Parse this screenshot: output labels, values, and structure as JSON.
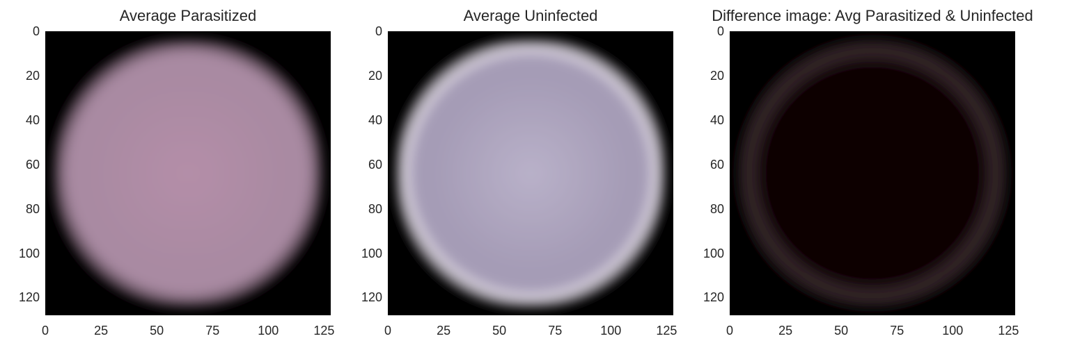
{
  "chart_data": [
    {
      "type": "heatmap",
      "title": "Average Parasitized",
      "xlabel": "",
      "ylabel": "",
      "x_ticks": [
        0,
        25,
        50,
        75,
        100,
        125
      ],
      "y_ticks": [
        0,
        20,
        40,
        60,
        80,
        100,
        120
      ],
      "xlim": [
        0,
        128
      ],
      "ylim": [
        128,
        0
      ],
      "image_description_values": {
        "center_rgb": "#b48ea8",
        "background_rgb": "#000000"
      },
      "grid": false
    },
    {
      "type": "heatmap",
      "title": "Average Uninfected",
      "xlabel": "",
      "ylabel": "",
      "x_ticks": [
        0,
        25,
        50,
        75,
        100,
        125
      ],
      "y_ticks": [
        0,
        20,
        40,
        60,
        80,
        100,
        120
      ],
      "xlim": [
        0,
        128
      ],
      "ylim": [
        128,
        0
      ],
      "image_description_values": {
        "center_rgb": "#b7aec7",
        "background_rgb": "#000000"
      },
      "grid": false
    },
    {
      "type": "heatmap",
      "title": "Difference image: Avg Parasitized & Uninfected",
      "xlabel": "",
      "ylabel": "",
      "x_ticks": [
        0,
        25,
        50,
        75,
        100,
        125
      ],
      "y_ticks": [
        0,
        20,
        40,
        60,
        80,
        100,
        120
      ],
      "xlim": [
        0,
        128
      ],
      "ylim": [
        128,
        0
      ],
      "image_description_values": {
        "center_rgb": "#0c0204",
        "background_rgb": "#000000"
      },
      "grid": false
    }
  ],
  "colors": {
    "parasitized_center": "#b48ea8",
    "parasitized_mid": "#a98aa2",
    "uninfected_center": "#b9b1c9",
    "uninfected_mid": "#a59cb6",
    "difference_ring": "#3a2a2e",
    "difference_center": "#0a0102"
  }
}
